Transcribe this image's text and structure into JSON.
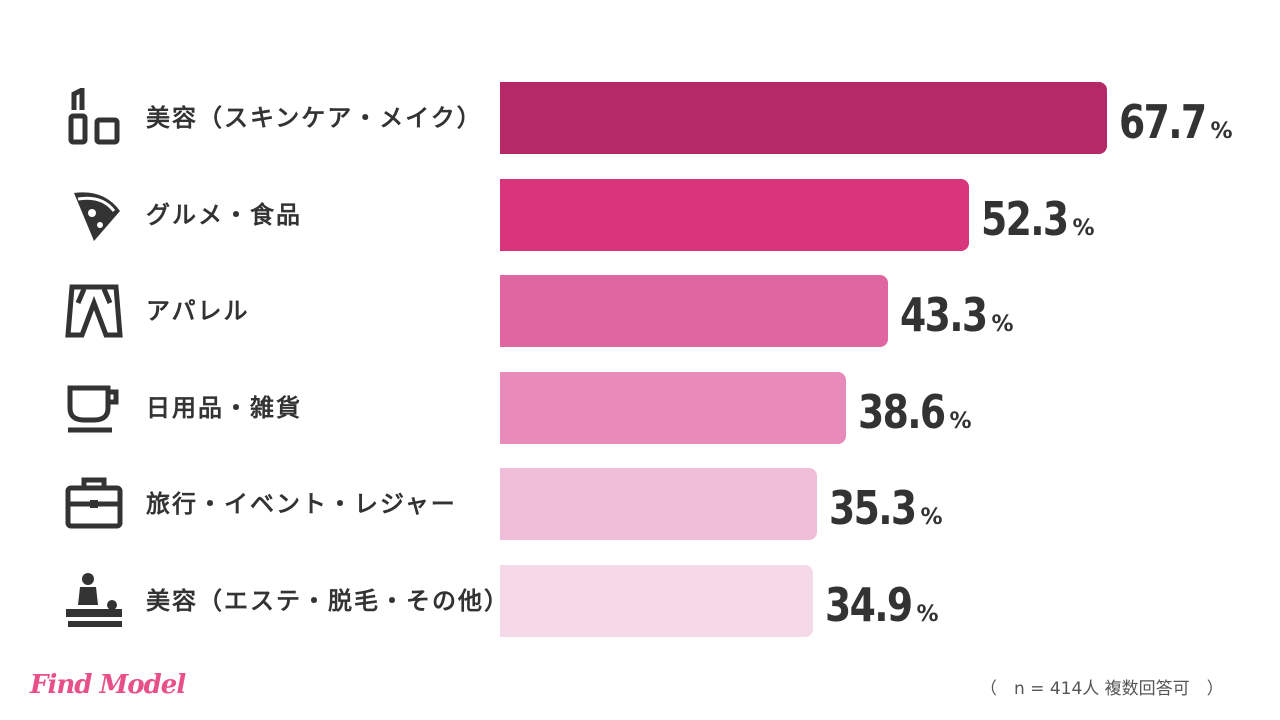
{
  "chart_data": {
    "type": "bar",
    "orientation": "horizontal",
    "categories": [
      "美容（スキンケア・メイク）",
      "グルメ・食品",
      "アパレル",
      "日用品・雑貨",
      "旅行・イベント・レジャー",
      "美容（エステ・脱毛・その他）"
    ],
    "values": [
      67.7,
      52.3,
      43.3,
      38.6,
      35.3,
      34.9
    ],
    "value_labels": [
      "67.7",
      "52.3",
      "43.3",
      "38.6",
      "35.3",
      "34.9"
    ],
    "unit": "%",
    "icons": [
      "lipstick-icon",
      "pizza-icon",
      "pants-icon",
      "cup-icon",
      "suitcase-icon",
      "massage-icon"
    ],
    "colors": [
      "#b52a66",
      "#d9357c",
      "#e066a2",
      "#e88bbb",
      "#f0bdd8",
      "#f5d9e8"
    ],
    "xlim": [
      0,
      100
    ]
  },
  "footer": {
    "logo": "Find Model",
    "note": "（　n = 414人 複数回答可　）"
  }
}
